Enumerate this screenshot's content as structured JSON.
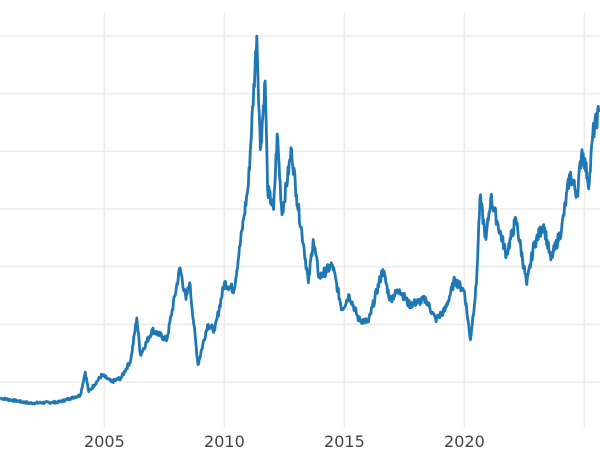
{
  "chart_data": {
    "type": "line",
    "title": "",
    "xlabel": "",
    "ylabel": "",
    "xlim": [
      2000.65,
      2025.65
    ],
    "ylim": [
      2,
      74
    ],
    "grid": true,
    "y_gridlines": [
      10,
      20,
      30,
      40,
      50,
      60,
      70
    ],
    "y_tick_labels_shown": false,
    "x_ticks": [
      2005,
      2010,
      2015,
      2020,
      2025
    ],
    "x_tick_labels": [
      "2005",
      "2010",
      "2015",
      "2020",
      ""
    ],
    "line_color": "#1f77b4",
    "series": [
      {
        "x": [
          2000.65,
          2001.9,
          2003.1,
          2004.0,
          2004.2,
          2004.35,
          2004.9,
          2005.3,
          2005.7,
          2006.1,
          2006.35,
          2006.5,
          2007.0,
          2007.6,
          2008.15,
          2008.4,
          2008.55,
          2008.9,
          2009.3,
          2009.6,
          2010.0,
          2010.4,
          2010.8,
          2011.0,
          2011.35,
          2011.5,
          2011.7,
          2011.8,
          2012.05,
          2012.2,
          2012.4,
          2012.8,
          2013.0,
          2013.3,
          2013.5,
          2013.7,
          2013.95,
          2014.5,
          2014.9,
          2015.2,
          2015.6,
          2016.0,
          2016.6,
          2016.9,
          2017.3,
          2017.7,
          2018.4,
          2018.8,
          2019.2,
          2019.6,
          2020.0,
          2020.25,
          2020.5,
          2020.65,
          2020.9,
          2021.1,
          2021.4,
          2021.75,
          2022.15,
          2022.6,
          2022.9,
          2023.3,
          2023.6,
          2024.05,
          2024.4,
          2024.7,
          2024.9,
          2025.2,
          2025.35,
          2025.6
        ],
        "y": [
          7.2,
          6.3,
          6.5,
          7.7,
          11.7,
          8.3,
          11.2,
          10,
          10.7,
          13.8,
          21.1,
          14.7,
          19,
          17.3,
          29.8,
          24.3,
          27.2,
          13,
          19.9,
          19,
          27.2,
          26,
          38.2,
          44.3,
          70,
          50.3,
          62.2,
          43.4,
          39.9,
          53,
          39,
          50.3,
          42.5,
          33.8,
          27.2,
          34.7,
          28.1,
          30.3,
          22.5,
          25.1,
          20.8,
          20.4,
          29.5,
          24.3,
          26,
          23.4,
          24.3,
          20.8,
          22.5,
          27.7,
          25.7,
          17.3,
          26.9,
          42,
          34.7,
          42,
          37.3,
          32.1,
          38.2,
          26.9,
          33.8,
          37.3,
          31.2,
          36.5,
          46,
          42.5,
          50.3,
          44.3,
          53,
          56.8
        ]
      }
    ]
  }
}
